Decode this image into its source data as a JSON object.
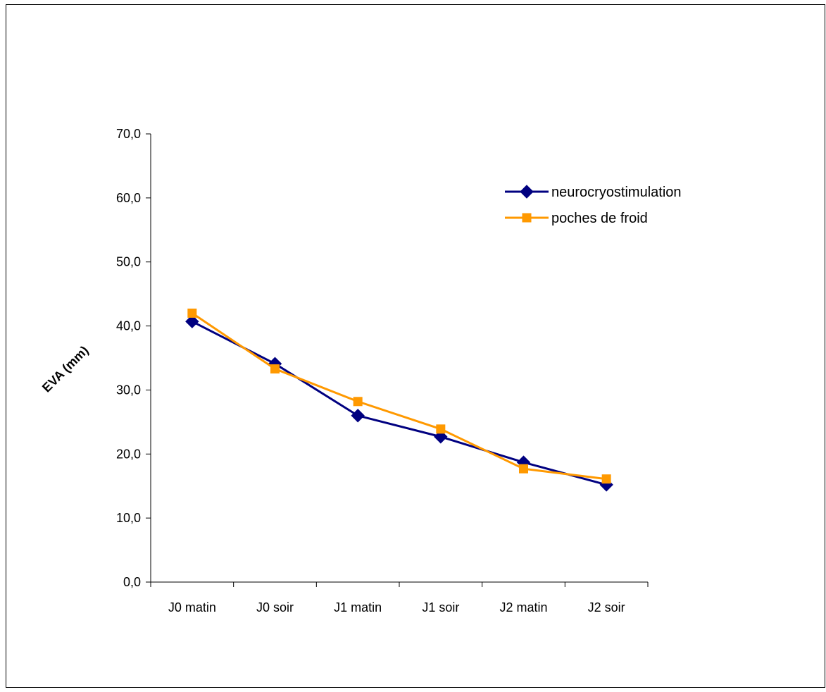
{
  "chart_data": {
    "type": "line",
    "categories": [
      "J0 matin",
      "J0 soir",
      "J1 matin",
      "J1 soir",
      "J2 matin",
      "J2 soir"
    ],
    "series": [
      {
        "name": "neurocryostimulation",
        "values": [
          40.7,
          34.1,
          26.0,
          22.7,
          18.7,
          15.2
        ],
        "color": "#000080",
        "marker": "diamond"
      },
      {
        "name": "poches de froid",
        "values": [
          42.0,
          33.3,
          28.2,
          23.9,
          17.7,
          16.1
        ],
        "color": "#FF9900",
        "marker": "square"
      }
    ],
    "title": "",
    "xlabel": "",
    "ylabel": "EVA (mm)",
    "ylim": [
      0,
      70
    ],
    "yticks": [
      "0,0",
      "10,0",
      "20,0",
      "30,0",
      "40,0",
      "50,0",
      "60,0",
      "70,0"
    ],
    "grid": false,
    "legend_position": "top-right"
  }
}
